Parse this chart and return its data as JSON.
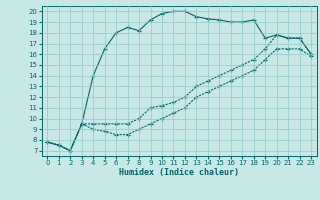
{
  "title": "",
  "xlabel": "Humidex (Indice chaleur)",
  "bg_color": "#c8e8e8",
  "line_color": "#006666",
  "grid_color": "#90c8c8",
  "xlim": [
    -0.5,
    23.5
  ],
  "ylim": [
    6.5,
    20.5
  ],
  "xticks": [
    0,
    1,
    2,
    3,
    4,
    5,
    6,
    7,
    8,
    9,
    10,
    11,
    12,
    13,
    14,
    15,
    16,
    17,
    18,
    19,
    20,
    21,
    22,
    23
  ],
  "yticks": [
    7,
    8,
    9,
    10,
    11,
    12,
    13,
    14,
    15,
    16,
    17,
    18,
    19,
    20
  ],
  "line1_x": [
    0,
    1,
    2,
    3,
    4,
    5,
    6,
    7,
    8,
    9,
    10,
    11,
    12,
    13,
    14,
    15,
    16,
    17,
    18,
    19,
    20,
    21,
    22,
    23
  ],
  "line1_y": [
    7.8,
    7.5,
    7.0,
    9.5,
    14.0,
    16.5,
    18.0,
    18.5,
    18.2,
    19.2,
    19.8,
    20.0,
    20.0,
    19.5,
    19.3,
    19.2,
    19.0,
    19.0,
    19.2,
    17.5,
    17.8,
    17.5,
    17.5,
    16.0
  ],
  "line2_x": [
    0,
    1,
    2,
    3,
    4,
    5,
    6,
    7,
    8,
    9,
    10,
    11,
    12,
    13,
    14,
    15,
    16,
    17,
    18,
    19,
    20,
    21,
    22,
    23
  ],
  "line2_y": [
    7.8,
    7.5,
    7.0,
    9.5,
    9.5,
    9.5,
    9.5,
    9.5,
    10.0,
    11.0,
    11.2,
    11.5,
    12.0,
    13.0,
    13.5,
    14.0,
    14.5,
    15.0,
    15.5,
    16.5,
    17.8,
    17.5,
    17.5,
    16.0
  ],
  "line3_x": [
    0,
    1,
    2,
    3,
    4,
    5,
    6,
    7,
    8,
    9,
    10,
    11,
    12,
    13,
    14,
    15,
    16,
    17,
    18,
    19,
    20,
    21,
    22,
    23
  ],
  "line3_y": [
    7.8,
    7.5,
    7.0,
    9.5,
    9.0,
    8.8,
    8.5,
    8.5,
    9.0,
    9.5,
    10.0,
    10.5,
    11.0,
    12.0,
    12.5,
    13.0,
    13.5,
    14.0,
    14.5,
    15.5,
    16.5,
    16.5,
    16.5,
    15.8
  ]
}
